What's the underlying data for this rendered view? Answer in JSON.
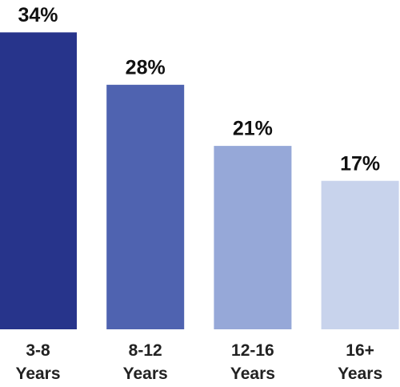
{
  "chart_data": {
    "type": "bar",
    "categories": [
      "3-8 Years",
      "8-12 Years",
      "12-16 Years",
      "16+ Years"
    ],
    "values": [
      34,
      28,
      21,
      17
    ],
    "value_labels": [
      "34%",
      "28%",
      "21%",
      "17%"
    ],
    "colors": [
      "#27348b",
      "#4f63b0",
      "#96a8d8",
      "#c8d3ec"
    ]
  }
}
